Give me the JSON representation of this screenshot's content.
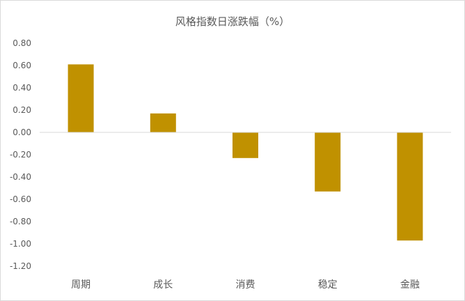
{
  "chart_data": {
    "type": "bar",
    "title": "风格指数日涨跌幅（%）",
    "categories": [
      "周期",
      "成长",
      "消费",
      "稳定",
      "金融"
    ],
    "values": [
      0.61,
      0.17,
      -0.23,
      -0.53,
      -0.97
    ],
    "ylim": [
      -1.2,
      0.8
    ],
    "yticks": [
      "0.80",
      "0.60",
      "0.40",
      "0.20",
      "0.00",
      "-0.20",
      "-0.40",
      "-0.60",
      "-0.80",
      "-1.00",
      "-1.20"
    ],
    "xlabel": "",
    "ylabel": "",
    "grid": false,
    "legend": "none",
    "bar_color": "#C09100",
    "axis_color": "#d9d9d9"
  }
}
